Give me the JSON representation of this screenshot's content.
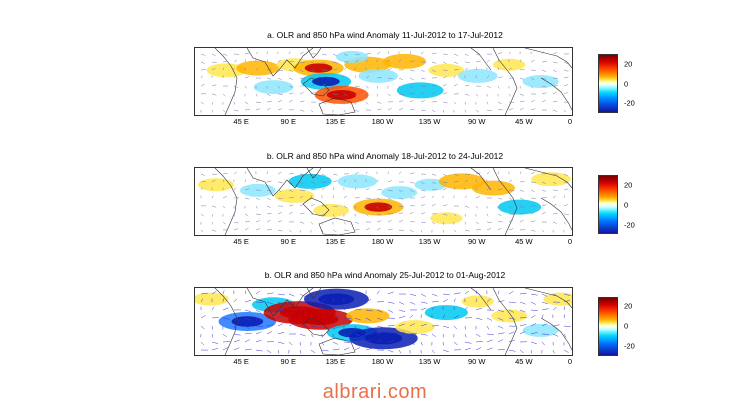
{
  "chart_data": [
    {
      "type": "heatmap",
      "title": "a. OLR and 850 hPa wind Anomaly 11-Jul-2012 to 17-Jul-2012",
      "x_tick_labels": [
        "45  E",
        "90  E",
        "135  E",
        "180  W",
        "135  W",
        "90  W",
        "45  W",
        "0"
      ],
      "colorbar": {
        "ticks": [
          20,
          0,
          -20
        ],
        "range": [
          -30,
          30
        ]
      },
      "anomalies": [
        {
          "lon": 30,
          "lat": 10,
          "value": 12
        },
        {
          "lon": 60,
          "lat": 12,
          "value": 14
        },
        {
          "lon": 75,
          "lat": -5,
          "value": -12
        },
        {
          "lon": 95,
          "lat": 15,
          "value": 10
        },
        {
          "lon": 118,
          "lat": 12,
          "value": 18
        },
        {
          "lon": 125,
          "lat": 0,
          "value": -18
        },
        {
          "lon": 140,
          "lat": -12,
          "value": 20
        },
        {
          "lon": 165,
          "lat": 15,
          "value": 16
        },
        {
          "lon": 175,
          "lat": 5,
          "value": -12
        },
        {
          "lon": 200,
          "lat": 18,
          "value": 14
        },
        {
          "lon": 215,
          "lat": -8,
          "value": -16
        },
        {
          "lon": 240,
          "lat": 10,
          "value": 10
        },
        {
          "lon": 270,
          "lat": 5,
          "value": -12
        },
        {
          "lon": 300,
          "lat": 15,
          "value": 8
        },
        {
          "lon": 330,
          "lat": 0,
          "value": -10
        },
        {
          "lon": 150,
          "lat": 22,
          "value": -8
        }
      ]
    },
    {
      "type": "heatmap",
      "title": "b. OLR and 850 hPa wind Anomaly 18-Jul-2012 to 24-Jul-2012",
      "x_tick_labels": [
        "45  E",
        "90  E",
        "135  E",
        "180  W",
        "135  W",
        "90  W",
        "45  W",
        "0"
      ],
      "colorbar": {
        "ticks": [
          20,
          0,
          -20
        ],
        "range": [
          -30,
          30
        ]
      },
      "anomalies": [
        {
          "lon": 20,
          "lat": 15,
          "value": 10
        },
        {
          "lon": 60,
          "lat": 10,
          "value": -10
        },
        {
          "lon": 95,
          "lat": 5,
          "value": 12
        },
        {
          "lon": 110,
          "lat": 18,
          "value": -14
        },
        {
          "lon": 130,
          "lat": -8,
          "value": 10
        },
        {
          "lon": 155,
          "lat": 18,
          "value": -12
        },
        {
          "lon": 175,
          "lat": -5,
          "value": 18
        },
        {
          "lon": 195,
          "lat": 8,
          "value": -10
        },
        {
          "lon": 225,
          "lat": 15,
          "value": -8
        },
        {
          "lon": 255,
          "lat": 18,
          "value": 16
        },
        {
          "lon": 285,
          "lat": 12,
          "value": 14
        },
        {
          "lon": 310,
          "lat": -5,
          "value": -14
        },
        {
          "lon": 340,
          "lat": 20,
          "value": 12
        },
        {
          "lon": 240,
          "lat": -15,
          "value": 8
        }
      ]
    },
    {
      "type": "heatmap",
      "title": "b. OLR and 850 hPa wind Anomaly 25-Jul-2012 to 01-Aug-2012",
      "x_tick_labels": [
        "45  E",
        "90  E",
        "135  E",
        "180  W",
        "135  W",
        "90  W",
        "45  W",
        "0"
      ],
      "colorbar": {
        "ticks": [
          20,
          0,
          -20
        ],
        "range": [
          -30,
          30
        ]
      },
      "anomalies": [
        {
          "lon": 15,
          "lat": 20,
          "value": 10
        },
        {
          "lon": 50,
          "lat": 0,
          "value": -22
        },
        {
          "lon": 75,
          "lat": 15,
          "value": -14
        },
        {
          "lon": 100,
          "lat": 8,
          "value": 30
        },
        {
          "lon": 120,
          "lat": 2,
          "value": 26
        },
        {
          "lon": 135,
          "lat": 20,
          "value": -26
        },
        {
          "lon": 150,
          "lat": -10,
          "value": -18
        },
        {
          "lon": 165,
          "lat": 5,
          "value": 14
        },
        {
          "lon": 180,
          "lat": -15,
          "value": -28
        },
        {
          "lon": 210,
          "lat": -5,
          "value": 12
        },
        {
          "lon": 240,
          "lat": 8,
          "value": -14
        },
        {
          "lon": 270,
          "lat": 18,
          "value": 8
        },
        {
          "lon": 300,
          "lat": 5,
          "value": 10
        },
        {
          "lon": 330,
          "lat": -8,
          "value": -10
        },
        {
          "lon": 350,
          "lat": 20,
          "value": 10
        }
      ]
    }
  ],
  "watermark": "albrari.com"
}
